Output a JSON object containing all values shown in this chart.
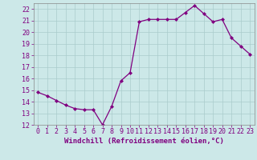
{
  "x": [
    0,
    1,
    2,
    3,
    4,
    5,
    6,
    7,
    8,
    9,
    10,
    11,
    12,
    13,
    14,
    15,
    16,
    17,
    18,
    19,
    20,
    21,
    22,
    23
  ],
  "y": [
    14.8,
    14.5,
    14.1,
    13.7,
    13.4,
    13.3,
    13.3,
    12.0,
    13.6,
    15.8,
    16.5,
    20.9,
    21.1,
    21.1,
    21.1,
    21.1,
    21.7,
    22.3,
    21.6,
    20.9,
    21.1,
    19.5,
    18.8,
    18.1
  ],
  "line_color": "#800080",
  "marker": "D",
  "marker_size": 2.0,
  "bg_color": "#cce8e8",
  "grid_color": "#aacccc",
  "xlabel": "Windchill (Refroidissement éolien,°C)",
  "ylabel": "",
  "ylim": [
    12,
    22.5
  ],
  "xlim": [
    -0.5,
    23.5
  ],
  "yticks": [
    12,
    13,
    14,
    15,
    16,
    17,
    18,
    19,
    20,
    21,
    22
  ],
  "xticks": [
    0,
    1,
    2,
    3,
    4,
    5,
    6,
    7,
    8,
    9,
    10,
    11,
    12,
    13,
    14,
    15,
    16,
    17,
    18,
    19,
    20,
    21,
    22,
    23
  ],
  "tick_color": "#800080",
  "label_fontsize": 6.5,
  "tick_fontsize": 6.0,
  "linewidth": 0.9
}
